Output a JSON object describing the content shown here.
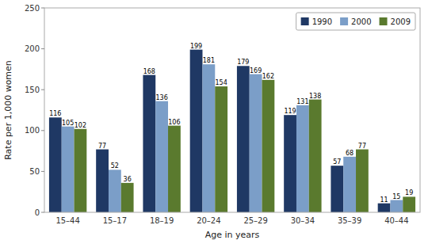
{
  "chart_data": {
    "type": "bar",
    "categories": [
      "15–44",
      "15–17",
      "18–19",
      "20–24",
      "25–29",
      "30–34",
      "35–39",
      "40–44"
    ],
    "series": [
      {
        "name": "1990",
        "color": "#1f3864",
        "values": [
          116,
          77,
          168,
          199,
          179,
          119,
          57,
          11
        ]
      },
      {
        "name": "2000",
        "color": "#7b9ec8",
        "values": [
          105,
          52,
          136,
          181,
          169,
          131,
          68,
          15
        ]
      },
      {
        "name": "2009",
        "color": "#5a7a2e",
        "values": [
          102,
          36,
          106,
          154,
          162,
          138,
          77,
          19
        ]
      }
    ],
    "xlabel": "Age in years",
    "ylabel": "Rate per 1,000 women",
    "ylim": [
      0,
      250
    ],
    "yticks": [
      0,
      50,
      100,
      150,
      200,
      250
    ],
    "grid": false,
    "legend": "upper right",
    "data_labels": true
  }
}
